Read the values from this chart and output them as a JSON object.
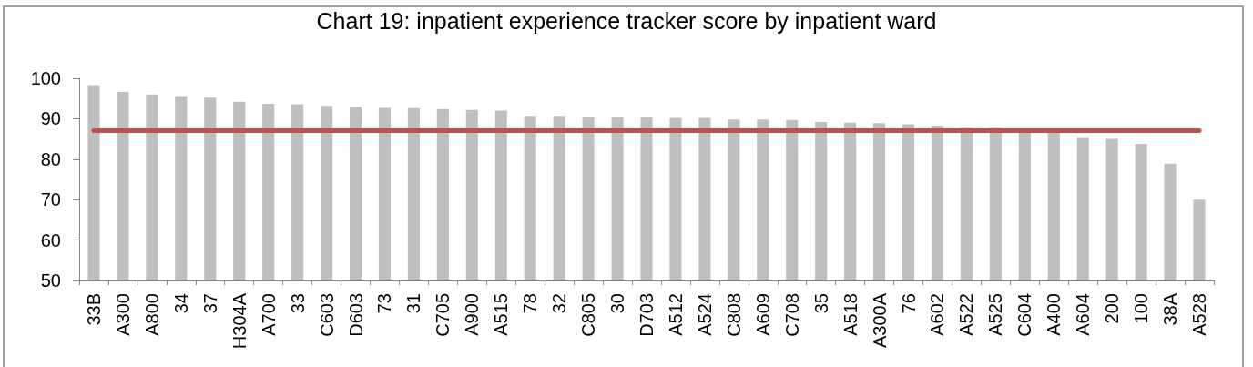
{
  "chart_data": {
    "type": "bar",
    "title": "Chart 19: inpatient experience tracker score by inpatient ward",
    "categories": [
      "33B",
      "A300",
      "A800",
      "34",
      "37",
      "H304A",
      "A700",
      "33",
      "C603",
      "D603",
      "73",
      "31",
      "C705",
      "A900",
      "A515",
      "78",
      "32",
      "C805",
      "30",
      "D703",
      "A512",
      "A524",
      "C808",
      "A609",
      "C708",
      "35",
      "A518",
      "A300A",
      "76",
      "A602",
      "A522",
      "A525",
      "C604",
      "A400",
      "A604",
      "200",
      "100",
      "38A",
      "A528"
    ],
    "values": [
      98.3,
      96.6,
      96.0,
      95.6,
      95.2,
      94.2,
      93.7,
      93.6,
      93.2,
      92.9,
      92.7,
      92.6,
      92.4,
      92.2,
      92.0,
      90.7,
      90.7,
      90.5,
      90.4,
      90.4,
      90.2,
      90.2,
      89.8,
      89.8,
      89.7,
      89.2,
      89.0,
      88.9,
      88.6,
      88.3,
      87.7,
      87.7,
      87.0,
      86.8,
      85.5,
      85.0,
      83.8,
      78.9,
      70.0
    ],
    "color": "#bfbfbf",
    "ylim": [
      50,
      100
    ],
    "yticks": [
      50,
      60,
      70,
      80,
      90,
      100
    ],
    "grid": false,
    "ref_lines": [
      {
        "axis": "y",
        "value": 87,
        "color": "#c0504d"
      }
    ]
  }
}
